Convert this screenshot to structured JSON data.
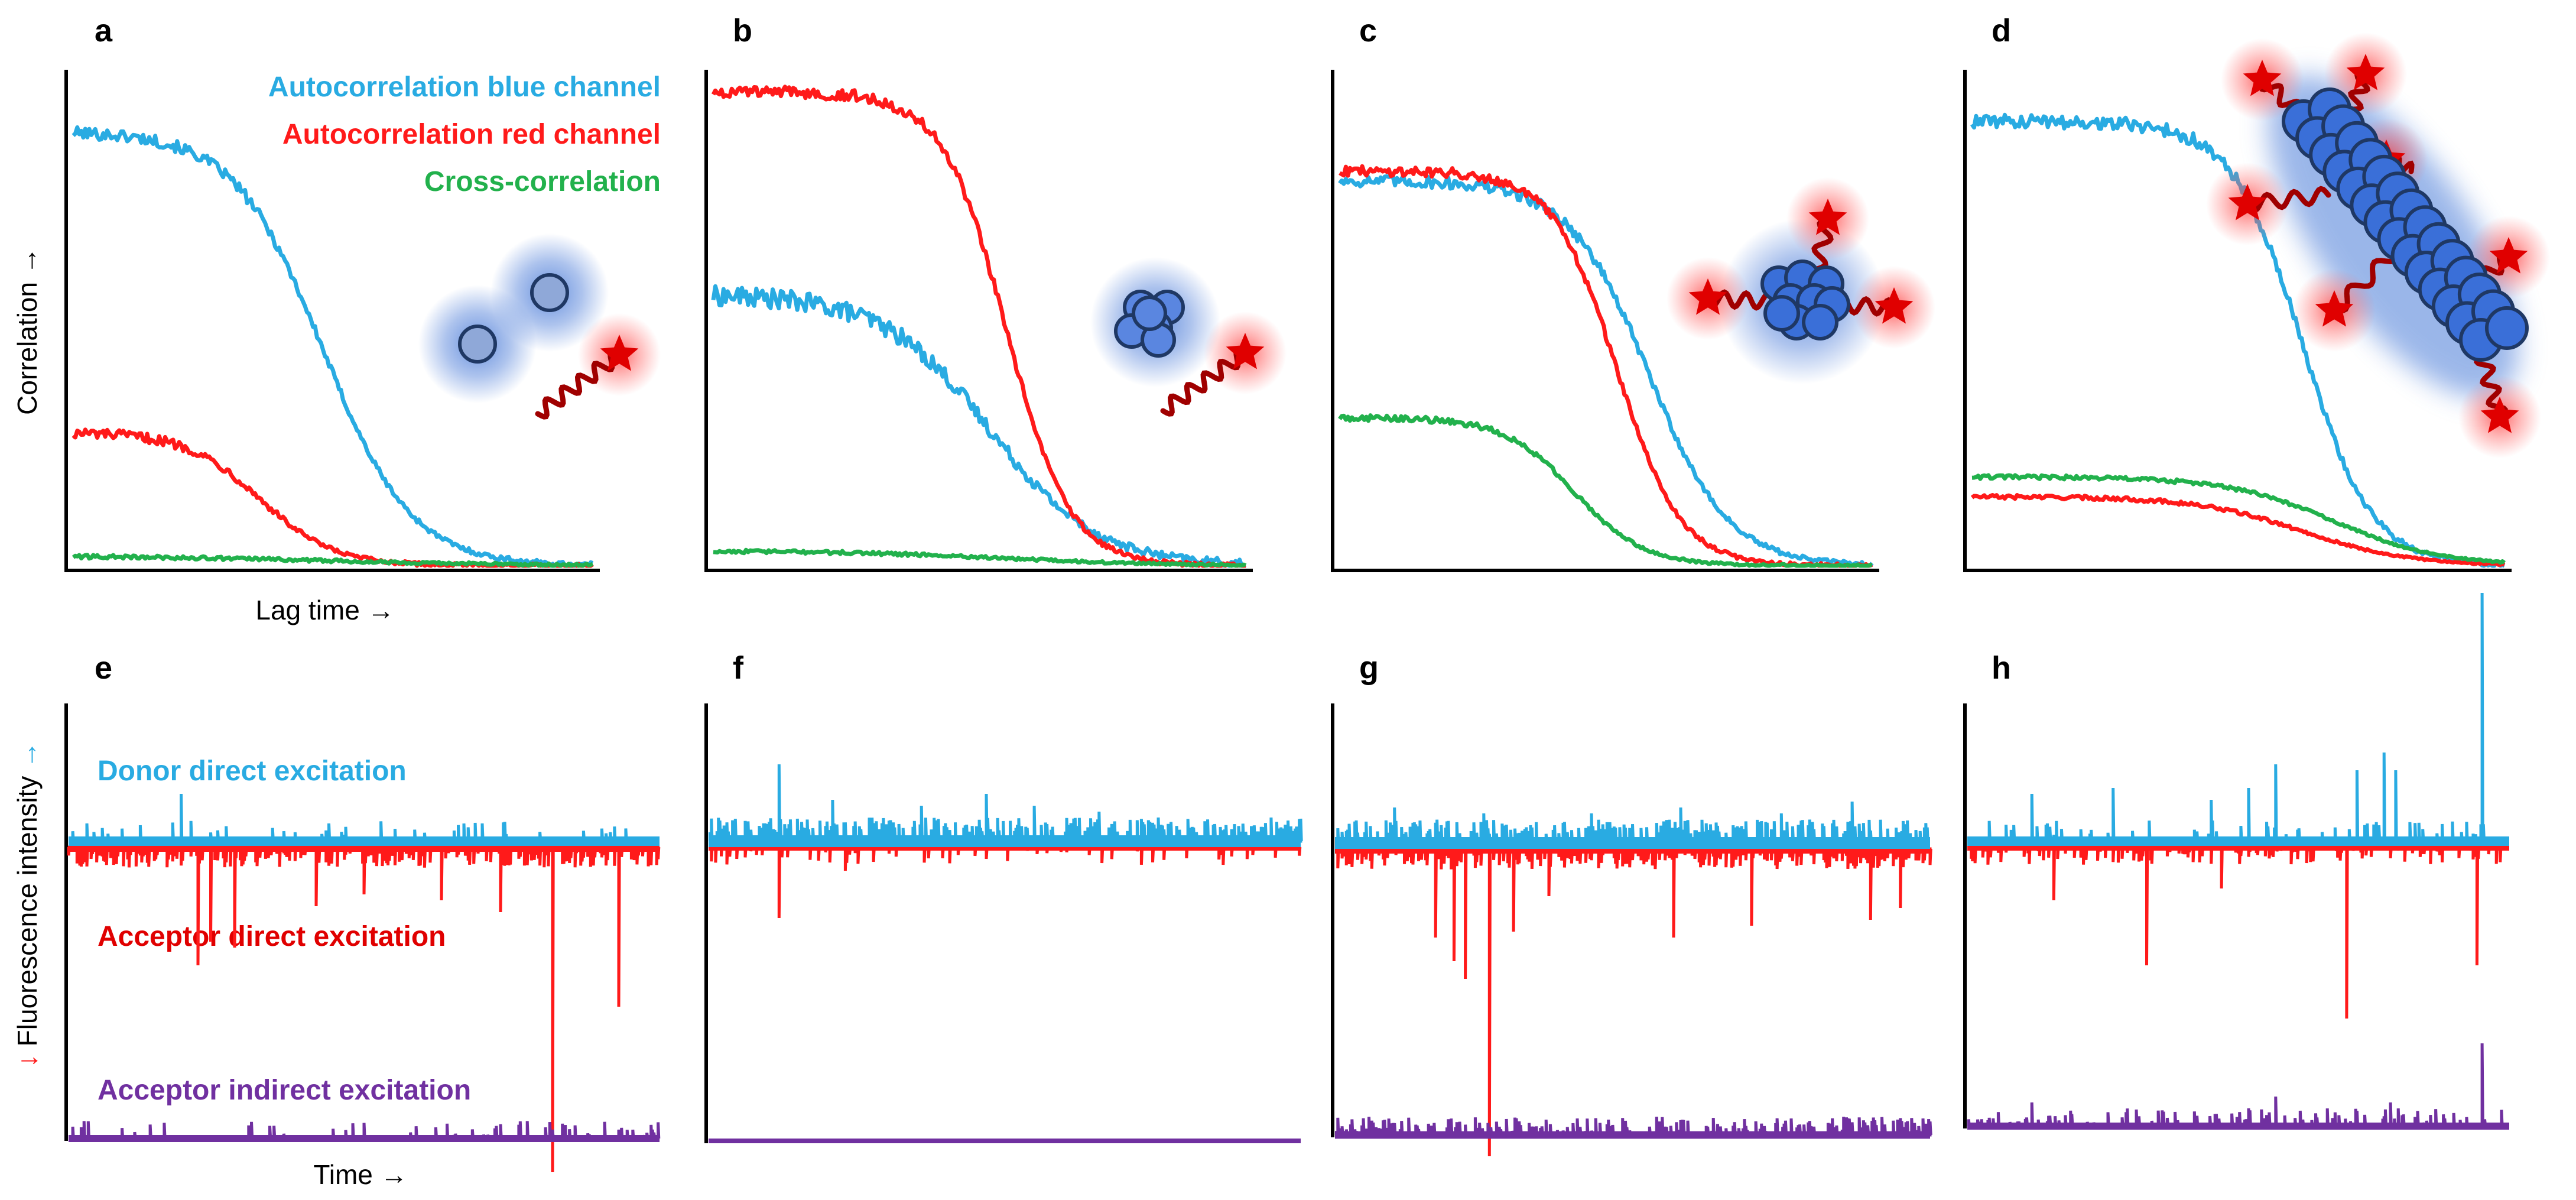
{
  "colors": {
    "blue": "#29abe2",
    "red": "#ff1a1a",
    "green": "#22b14c",
    "purple": "#7030a0",
    "arrow_blue": "#29abe2",
    "arrow_red": "#ff1a1a",
    "particle_fill": "#3a6fd8",
    "particle_edge": "#1f3864",
    "particle_glow": "#4a7bd8",
    "dye_red": "#e00000",
    "axis": "#000000"
  },
  "top_y_label": "Correlation →",
  "top_x_label": "Lag time →",
  "bottom_y_label_parts": [
    "↓",
    " Fluorescence intensity ",
    "→"
  ],
  "bottom_x_label": "Time →",
  "legend": {
    "blue": "Autocorrelation blue channel",
    "red": "Autocorrelation red channel",
    "green": "Cross-correlation"
  },
  "trace_labels": {
    "donor": "Donor direct excitation",
    "acceptor_direct": "Acceptor direct excitation",
    "acceptor_indirect": "Acceptor indirect excitation"
  },
  "chart_data": [
    {
      "panel": "a",
      "type": "line",
      "xlabel": "Lag time →",
      "ylabel": "Correlation →",
      "ylim": [
        0,
        1
      ],
      "xlim": [
        0,
        1
      ],
      "illustration": "two free blue particles and one free red-labelled strand",
      "series": [
        {
          "name": "Autocorrelation blue channel",
          "color": "blue",
          "amplitude": 0.88,
          "halfpoint": 0.48,
          "width": 0.085,
          "noise": 0.012
        },
        {
          "name": "Autocorrelation red channel",
          "color": "red",
          "amplitude": 0.27,
          "halfpoint": 0.36,
          "width": 0.07,
          "noise": 0.01
        },
        {
          "name": "Cross-correlation",
          "color": "green",
          "amplitude": 0.02,
          "halfpoint": 0.5,
          "width": 0.2,
          "noise": 0.006
        }
      ]
    },
    {
      "panel": "b",
      "type": "line",
      "xlabel": "Lag time →",
      "ylabel": "Correlation →",
      "ylim": [
        0,
        1
      ],
      "xlim": [
        0,
        1
      ],
      "illustration": "blue particle cluster and one free red-labelled strand",
      "series": [
        {
          "name": "Autocorrelation blue channel",
          "color": "blue",
          "amplitude": 0.55,
          "halfpoint": 0.52,
          "width": 0.1,
          "noise": 0.02
        },
        {
          "name": "Autocorrelation red channel",
          "color": "red",
          "amplitude": 0.96,
          "halfpoint": 0.55,
          "width": 0.06,
          "noise": 0.012
        },
        {
          "name": "Cross-correlation",
          "color": "green",
          "amplitude": 0.03,
          "halfpoint": 0.55,
          "width": 0.15,
          "noise": 0.005
        }
      ]
    },
    {
      "panel": "c",
      "type": "line",
      "xlabel": "Lag time →",
      "ylabel": "Correlation →",
      "ylim": [
        0,
        1
      ],
      "xlim": [
        0,
        1
      ],
      "illustration": "blue particle cluster with three bound red-labelled strands",
      "series": [
        {
          "name": "Autocorrelation blue channel",
          "color": "blue",
          "amplitude": 0.78,
          "halfpoint": 0.58,
          "width": 0.075,
          "noise": 0.012
        },
        {
          "name": "Autocorrelation red channel",
          "color": "red",
          "amplitude": 0.8,
          "halfpoint": 0.52,
          "width": 0.06,
          "noise": 0.01
        },
        {
          "name": "Cross-correlation",
          "color": "green",
          "amplitude": 0.3,
          "halfpoint": 0.44,
          "width": 0.065,
          "noise": 0.006
        }
      ]
    },
    {
      "panel": "d",
      "type": "line",
      "xlabel": "Lag time →",
      "ylabel": "Correlation →",
      "ylim": [
        0,
        1
      ],
      "xlim": [
        0,
        1
      ],
      "illustration": "large elongated blue aggregate with many bound red-labelled strands",
      "series": [
        {
          "name": "Autocorrelation blue channel",
          "color": "blue",
          "amplitude": 0.9,
          "halfpoint": 0.62,
          "width": 0.065,
          "noise": 0.014
        },
        {
          "name": "Autocorrelation red channel",
          "color": "red",
          "amplitude": 0.14,
          "halfpoint": 0.62,
          "width": 0.1,
          "noise": 0.004
        },
        {
          "name": "Cross-correlation",
          "color": "green",
          "amplitude": 0.18,
          "halfpoint": 0.68,
          "width": 0.1,
          "noise": 0.004
        }
      ]
    },
    {
      "panel": "e",
      "type": "line",
      "xlabel": "Time →",
      "ylabel": "Fluorescence intensity",
      "series": [
        {
          "name": "Donor direct excitation",
          "color": "blue",
          "baseline": 0.02,
          "spikes": [
            [
              0.19,
              0.08
            ],
            [
              0.44,
              0.03
            ],
            [
              0.7,
              0.03
            ]
          ],
          "noise_density": "low"
        },
        {
          "name": "Acceptor direct excitation",
          "color": "red",
          "baseline": 0.02,
          "spikes": [
            [
              0.22,
              0.2
            ],
            [
              0.24,
              0.16
            ],
            [
              0.28,
              0.17
            ],
            [
              0.42,
              0.1
            ],
            [
              0.5,
              0.08
            ],
            [
              0.63,
              0.09
            ],
            [
              0.73,
              0.11
            ],
            [
              0.82,
              0.55
            ],
            [
              0.93,
              0.27
            ]
          ],
          "noise_density": "high"
        },
        {
          "name": "Acceptor indirect excitation",
          "color": "purple",
          "baseline": 0.01,
          "spikes": [
            [
              0.82,
              0.015
            ],
            [
              0.93,
              0.015
            ]
          ],
          "noise_density": "low"
        }
      ]
    },
    {
      "panel": "f",
      "type": "line",
      "xlabel": "Time →",
      "ylabel": "Fluorescence intensity",
      "series": [
        {
          "name": "Donor direct excitation",
          "color": "blue",
          "baseline": 0.03,
          "spikes": [
            [
              0.12,
              0.13
            ],
            [
              0.21,
              0.07
            ],
            [
              0.36,
              0.06
            ],
            [
              0.47,
              0.08
            ],
            [
              0.55,
              0.06
            ],
            [
              0.66,
              0.05
            ],
            [
              0.76,
              0.04
            ],
            [
              0.95,
              0.04
            ]
          ],
          "noise_density": "high"
        },
        {
          "name": "Acceptor direct excitation",
          "color": "red",
          "baseline": 0.01,
          "spikes": [
            [
              0.12,
              0.12
            ],
            [
              0.23,
              0.04
            ],
            [
              0.47,
              0.02
            ],
            [
              0.87,
              0.03
            ]
          ],
          "noise_density": "low"
        },
        {
          "name": "Acceptor indirect excitation",
          "color": "purple",
          "baseline": 0.0,
          "spikes": [],
          "noise_density": "none"
        }
      ]
    },
    {
      "panel": "g",
      "type": "line",
      "xlabel": "Time →",
      "ylabel": "Fluorescence intensity",
      "series": [
        {
          "name": "Donor direct excitation",
          "color": "blue",
          "baseline": 0.03,
          "spikes": [
            [
              0.1,
              0.06
            ],
            [
              0.25,
              0.05
            ],
            [
              0.43,
              0.05
            ],
            [
              0.58,
              0.06
            ],
            [
              0.75,
              0.05
            ],
            [
              0.87,
              0.07
            ]
          ],
          "noise_density": "high"
        },
        {
          "name": "Acceptor direct excitation",
          "color": "red",
          "baseline": 0.02,
          "spikes": [
            [
              0.17,
              0.15
            ],
            [
              0.2,
              0.19
            ],
            [
              0.22,
              0.22
            ],
            [
              0.26,
              0.52
            ],
            [
              0.3,
              0.14
            ],
            [
              0.36,
              0.08
            ],
            [
              0.57,
              0.15
            ],
            [
              0.7,
              0.13
            ],
            [
              0.9,
              0.12
            ],
            [
              0.95,
              0.1
            ]
          ],
          "noise_density": "high"
        },
        {
          "name": "Acceptor indirect excitation",
          "color": "purple",
          "baseline": 0.012,
          "spikes": [
            [
              0.1,
              0.02
            ],
            [
              0.4,
              0.02
            ],
            [
              0.74,
              0.02
            ]
          ],
          "noise_density": "high"
        }
      ]
    },
    {
      "panel": "h",
      "type": "line",
      "xlabel": "Time →",
      "ylabel": "Fluorescence intensity",
      "series": [
        {
          "name": "Donor direct excitation",
          "color": "blue",
          "baseline": 0.02,
          "spikes": [
            [
              0.12,
              0.08
            ],
            [
              0.27,
              0.09
            ],
            [
              0.45,
              0.07
            ],
            [
              0.52,
              0.09
            ],
            [
              0.57,
              0.13
            ],
            [
              0.72,
              0.12
            ],
            [
              0.77,
              0.15
            ],
            [
              0.79,
              0.12
            ],
            [
              0.95,
              0.42
            ]
          ],
          "noise_density": "low"
        },
        {
          "name": "Acceptor direct excitation",
          "color": "red",
          "baseline": 0.01,
          "spikes": [
            [
              0.16,
              0.09
            ],
            [
              0.33,
              0.2
            ],
            [
              0.47,
              0.07
            ],
            [
              0.7,
              0.29
            ],
            [
              0.94,
              0.2
            ]
          ],
          "noise_density": "medium"
        },
        {
          "name": "Acceptor indirect excitation",
          "color": "purple",
          "baseline": 0.01,
          "spikes": [
            [
              0.12,
              0.04
            ],
            [
              0.52,
              0.03
            ],
            [
              0.57,
              0.05
            ],
            [
              0.78,
              0.04
            ],
            [
              0.95,
              0.14
            ]
          ],
          "noise_density": "medium"
        }
      ]
    }
  ]
}
